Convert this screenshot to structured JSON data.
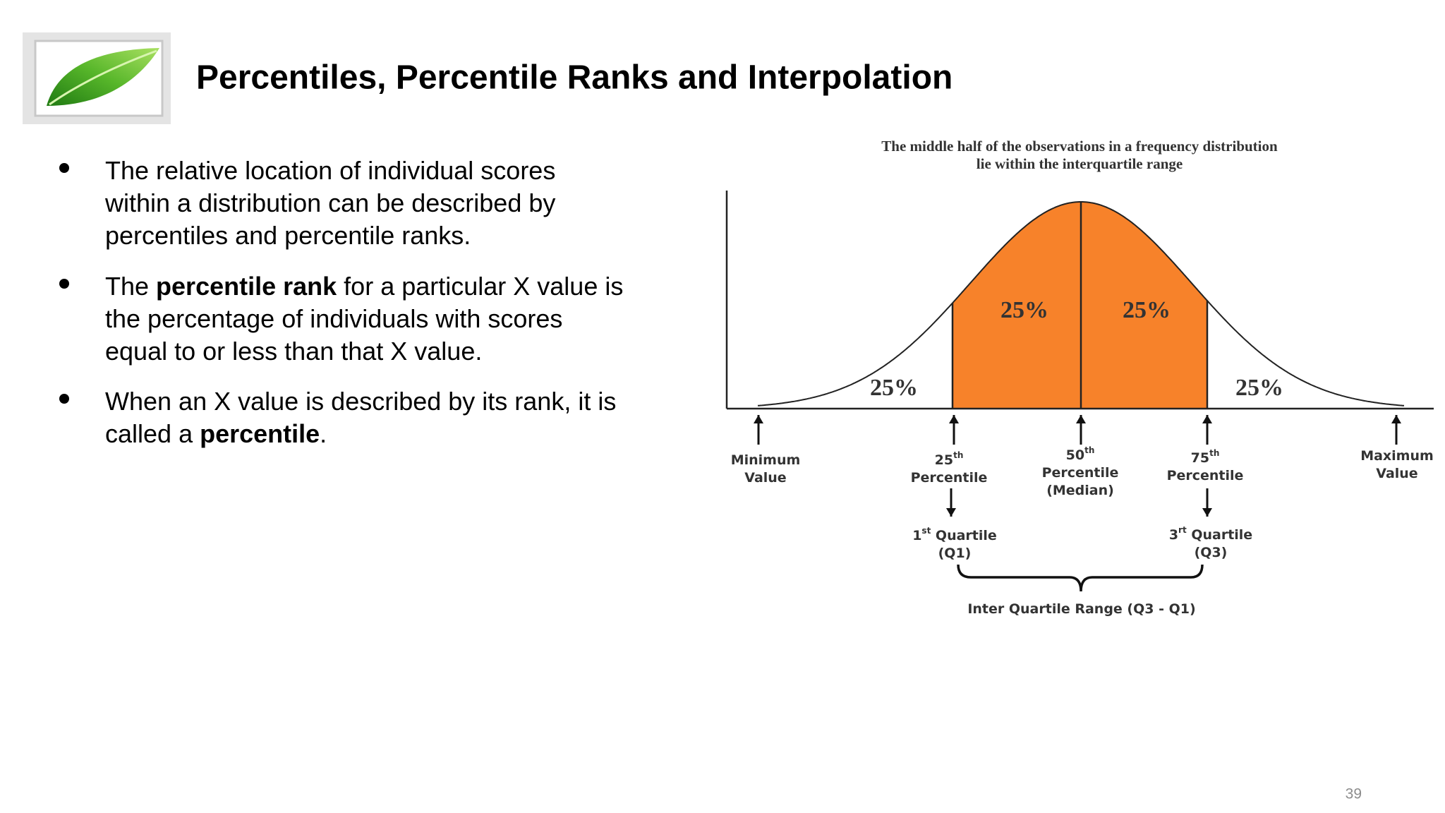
{
  "header": {
    "title": "Percentiles, Percentile Ranks and Interpolation"
  },
  "bullets": [
    {
      "lines": [
        [
          {
            "text": "The relative location of individual scores"
          }
        ],
        [
          {
            "text": "within a distribution can be described by"
          }
        ],
        [
          {
            "text": "percentiles and percentile ranks."
          }
        ]
      ]
    },
    {
      "lines": [
        [
          {
            "text": "The "
          },
          {
            "text": "percentile rank",
            "bold": true
          },
          {
            "text": " for a particular X value is"
          }
        ],
        [
          {
            "text": "the percentage of individuals with scores"
          }
        ],
        [
          {
            "text": "equal to or less than that X value."
          }
        ]
      ]
    },
    {
      "lines": [
        [
          {
            "text": "When an X value is described by its rank, it is"
          }
        ],
        [
          {
            "text": "called a "
          },
          {
            "text": "percentile",
            "bold": true
          },
          {
            "text": "."
          }
        ]
      ]
    }
  ],
  "diagram": {
    "title_lines": [
      "The middle half of the observations in a frequency distribution",
      "lie within the interquartile range"
    ],
    "region_labels": [
      "25%",
      "25%",
      "25%",
      "25%"
    ],
    "labels": [
      {
        "lines": [
          [
            {
              "text": "Minimum"
            }
          ],
          [
            {
              "text": "Value"
            }
          ]
        ]
      },
      {
        "lines": [
          [
            {
              "text": "25"
            },
            {
              "text": "th",
              "sup": true
            }
          ],
          [
            {
              "text": "Percentile"
            }
          ]
        ]
      },
      {
        "lines": [
          [
            {
              "text": "50"
            },
            {
              "text": "th",
              "sup": true
            }
          ],
          [
            {
              "text": "Percentile"
            }
          ],
          [
            {
              "text": "(Median)"
            }
          ]
        ]
      },
      {
        "lines": [
          [
            {
              "text": "75"
            },
            {
              "text": "th",
              "sup": true
            }
          ],
          [
            {
              "text": "Percentile"
            }
          ]
        ]
      },
      {
        "lines": [
          [
            {
              "text": "Maximum"
            }
          ],
          [
            {
              "text": "Value"
            }
          ]
        ]
      },
      {
        "lines": [
          [
            {
              "text": "1"
            },
            {
              "text": "st",
              "sup": true
            },
            {
              "text": " Quartile"
            }
          ],
          [
            {
              "text": "(Q1)"
            }
          ]
        ]
      },
      {
        "lines": [
          [
            {
              "text": "3"
            },
            {
              "text": "rt",
              "sup": true
            },
            {
              "text": " Quartile"
            }
          ],
          [
            {
              "text": "(Q3)"
            }
          ]
        ]
      },
      {
        "lines": [
          [
            {
              "text": "Inter Quartile Range (Q3 - Q1)"
            }
          ]
        ]
      }
    ]
  },
  "footer": {
    "page_number": "39"
  }
}
